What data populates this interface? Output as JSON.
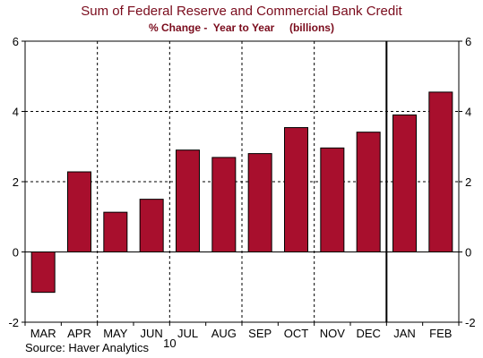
{
  "chart_data": {
    "type": "bar",
    "title": "Sum of Federal Reserve and Commercial Bank Credit",
    "subtitle": "% Change -  Year to Year     (billions)",
    "categories": [
      "MAR",
      "APR",
      "MAY",
      "JUN",
      "JUL",
      "AUG",
      "SEP",
      "OCT",
      "NOV",
      "DEC",
      "JAN",
      "FEB"
    ],
    "values": [
      -1.15,
      2.28,
      1.13,
      1.5,
      2.9,
      2.69,
      2.8,
      3.54,
      2.96,
      3.41,
      3.9,
      4.55
    ],
    "ylim": [
      -2,
      6
    ],
    "yticks": [
      -2,
      0,
      2,
      4,
      6
    ],
    "year_label": "10",
    "year_divider_after": "DEC",
    "grid": true,
    "bar_color": "#a80f2d",
    "source": "Source: Haver Analytics"
  }
}
